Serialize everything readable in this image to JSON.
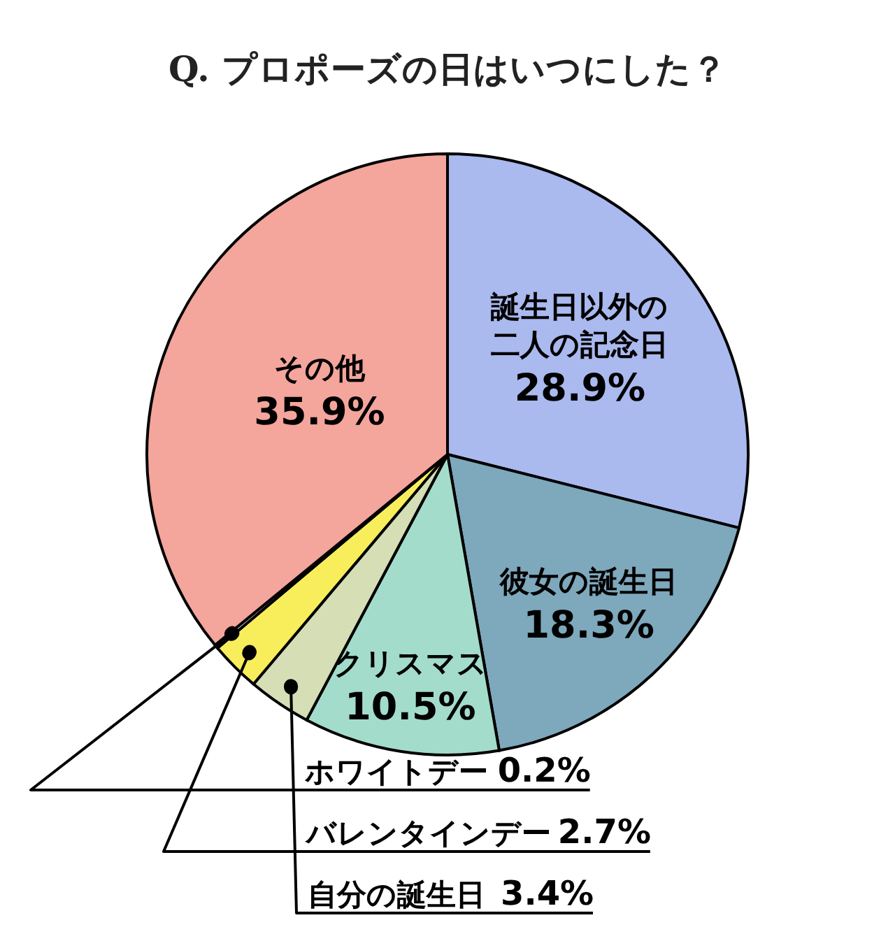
{
  "chart_data": {
    "type": "pie",
    "title": "Q. プロポーズの日はいつにした？",
    "categories": [
      "誕生日以外の二人の記念日",
      "彼女の誕生日",
      "クリスマス",
      "自分の誕生日",
      "バレンタインデー",
      "ホワイトデー",
      "その他"
    ],
    "values": [
      28.9,
      18.3,
      10.5,
      3.4,
      2.7,
      0.2,
      35.9
    ],
    "value_labels": [
      "28.9%",
      "18.3%",
      "10.5%",
      "3.4%",
      "2.7%",
      "0.2%",
      "35.9%"
    ],
    "colors": [
      "#aab9ee",
      "#7ea8bc",
      "#a3dccb",
      "#d5deb5",
      "#f8ee5c",
      "#fdfdf8",
      "#f4a59c"
    ]
  }
}
